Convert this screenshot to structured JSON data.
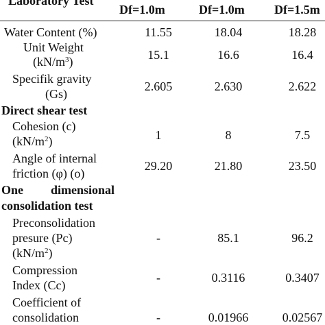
{
  "header": {
    "lab_test": "Laboratory Test",
    "col1": "Df=1.0m",
    "col2": "Df=1.0m",
    "col3": "Df=1.5m"
  },
  "rows": [
    {
      "label": "Water Content (%)",
      "v1": "11.55",
      "v2": "18.04",
      "v3": "18.28"
    },
    {
      "label_line1": "Unit Weight",
      "label_line2_base": "(kN/m",
      "label_line2_sup": "3",
      "label_line2_end": ")",
      "v1": "15.1",
      "v2": "16.6",
      "v3": "16.4"
    },
    {
      "label_line1": "Specifik gravity",
      "label_line2": "(Gs)",
      "v1": "2.605",
      "v2": "2.630",
      "v3": "2.622"
    }
  ],
  "direct_shear": {
    "title": "Direct shear test",
    "cohesion": {
      "label_line1": "Cohesion (c)",
      "label_line2_base": "(kN/m",
      "label_line2_sup": "2",
      "label_line2_end": ")",
      "v1": "1",
      "v2": "8",
      "v3": "7.5"
    },
    "friction": {
      "label_line1": "Angle of internal",
      "label_line2": "friction (φ) (o)",
      "v1": "29.20",
      "v2": "21.80",
      "v3": "23.50"
    }
  },
  "consolidation": {
    "title_word1": "One",
    "title_word2": "dimensional",
    "title_line2": "consolidation test",
    "precon": {
      "label_line1": "Preconsolidation",
      "label_line2": "presure (Pc)",
      "label_line3_base": "(kN/m",
      "label_line3_sup": "2",
      "label_line3_end": ")",
      "v1": "-",
      "v2": "85.1",
      "v3": "96.2"
    },
    "compression": {
      "label_line1": "Compression",
      "label_line2": "Index (Cc)",
      "v1": "-",
      "v2": "0.3116",
      "v3": "0.3407"
    },
    "coefficient": {
      "label_line1": "Coefficient of",
      "label_line2": "consolidation",
      "v1": "-",
      "v2": "0.01966",
      "v3": "0.02567"
    }
  }
}
